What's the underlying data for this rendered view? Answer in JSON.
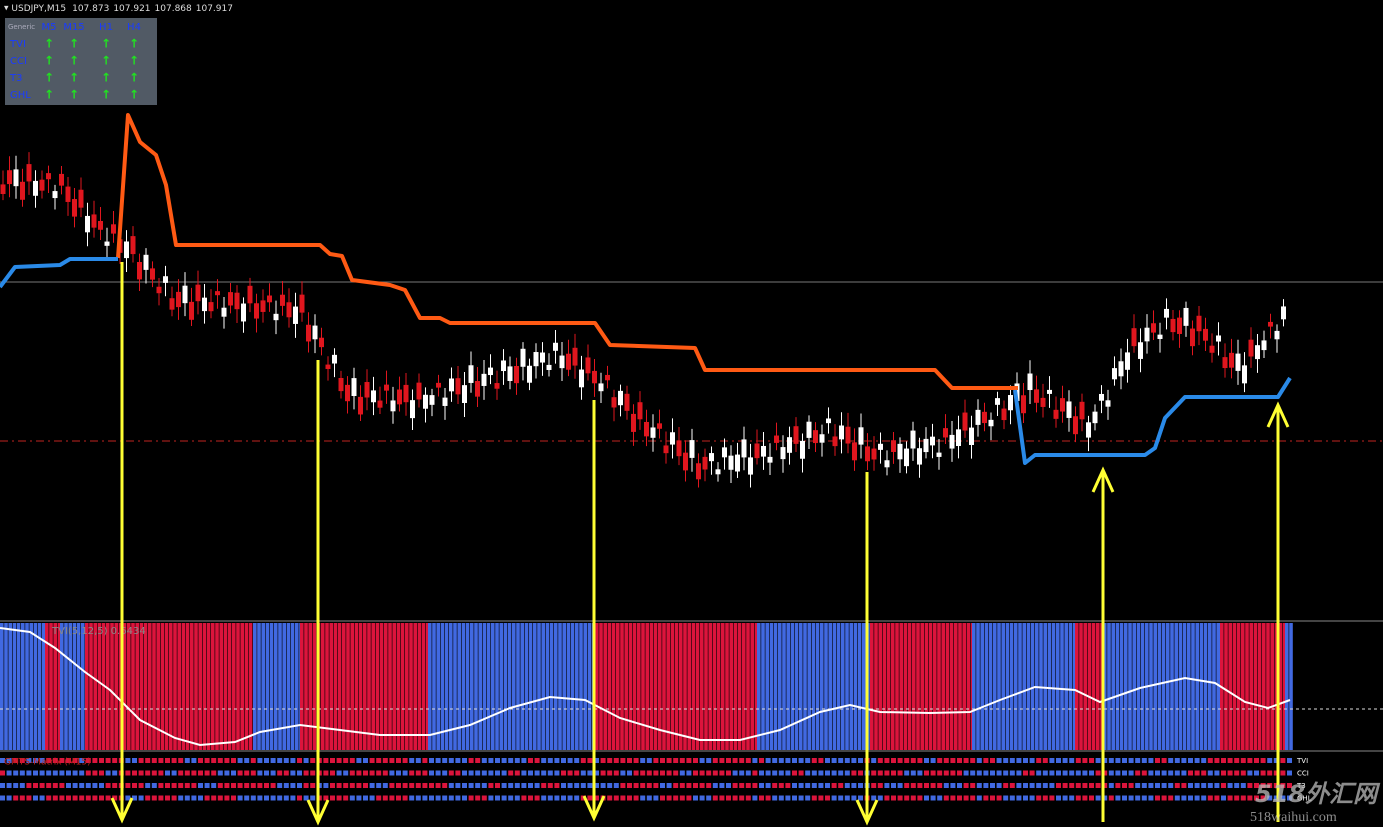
{
  "header": {
    "symbol": "USDJPY,M15",
    "prices": [
      "107.873",
      "107.921",
      "107.868",
      "107.917"
    ]
  },
  "panel": {
    "title": "Generic",
    "columns": [
      "M5",
      "M15",
      "H1",
      "H4"
    ],
    "rows": [
      {
        "label": "TVI",
        "cells": [
          "↑",
          "↑",
          "↑",
          "↑"
        ]
      },
      {
        "label": "CCI",
        "cells": [
          "↑",
          "↑",
          "↑",
          "↑"
        ]
      },
      {
        "label": "T3",
        "cells": [
          "↑",
          "↑",
          "↑",
          "↑"
        ]
      },
      {
        "label": "GHL",
        "cells": [
          "↑",
          "↑",
          "↑",
          "↑"
        ]
      }
    ]
  },
  "indicator": {
    "label": "TVI(5,12,5) 0.6434"
  },
  "matrix": {
    "label": "GMTS-Matrix (M15)",
    "rows": [
      "TVI",
      "CCI",
      "T3",
      "GHL"
    ]
  },
  "watermark": {
    "logo": "518外汇网",
    "site": "518waihui.com"
  }
}
